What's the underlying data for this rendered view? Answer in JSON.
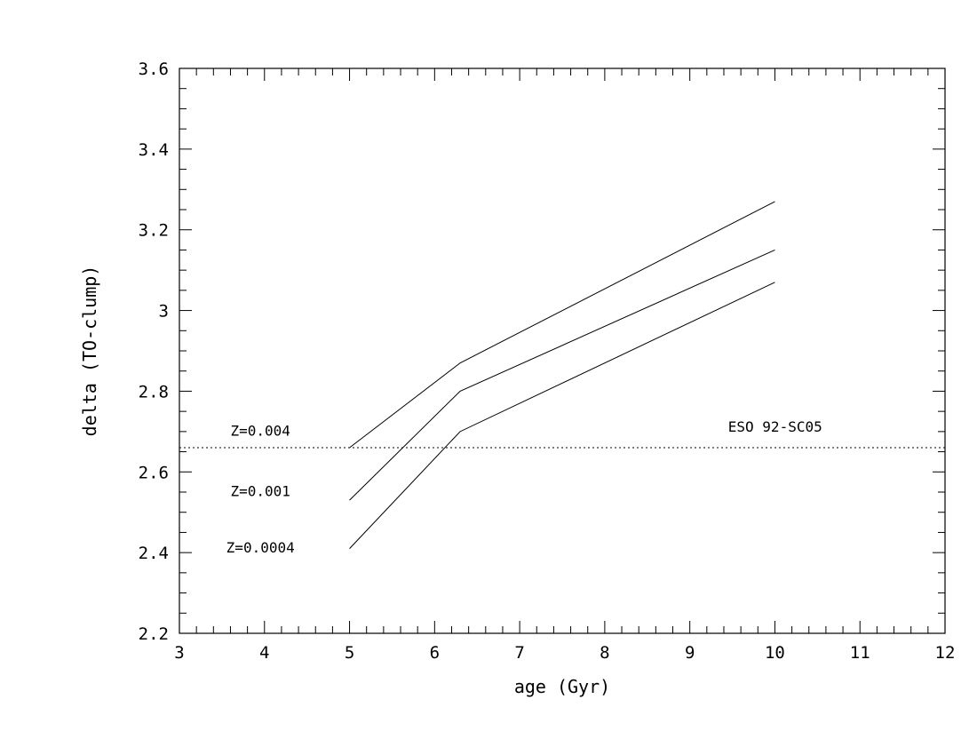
{
  "chart_data": {
    "type": "line",
    "xlabel": "age (Gyr)",
    "ylabel": "delta (TO-clump)",
    "xlim": [
      3,
      12
    ],
    "ylim": [
      2.2,
      3.6
    ],
    "x_ticks": [
      3,
      4,
      5,
      6,
      7,
      8,
      9,
      10,
      11,
      12
    ],
    "x_tick_labels": [
      "3",
      "4",
      "5",
      "6",
      "7",
      "8",
      "9",
      "10",
      "11",
      "12"
    ],
    "y_ticks": [
      2.2,
      2.4,
      2.6,
      2.8,
      3.0,
      3.2,
      3.4,
      3.6
    ],
    "y_tick_labels": [
      "2.2",
      "2.4",
      "2.6",
      "2.8",
      "3",
      "3.2",
      "3.4",
      "3.6"
    ],
    "x_minor_step": 0.2,
    "y_minor_step": 0.05,
    "grid": false,
    "series": [
      {
        "name": "Z=0.004",
        "x": [
          5,
          6.3,
          10
        ],
        "y": [
          2.66,
          2.87,
          3.27
        ]
      },
      {
        "name": "Z=0.001",
        "x": [
          5,
          6.3,
          10
        ],
        "y": [
          2.53,
          2.8,
          3.15
        ]
      },
      {
        "name": "Z=0.0004",
        "x": [
          5,
          6.3,
          10
        ],
        "y": [
          2.41,
          2.7,
          3.07
        ]
      }
    ],
    "series_labels": [
      {
        "text": "Z=0.004",
        "x": 3.6,
        "y": 2.69
      },
      {
        "text": "Z=0.001",
        "x": 3.6,
        "y": 2.54
      },
      {
        "text": "Z=0.0004",
        "x": 3.55,
        "y": 2.4
      }
    ],
    "reference_line": {
      "y": 2.66,
      "style": "dotted"
    },
    "annotations": [
      {
        "text": "ESO 92-SC05",
        "x": 9.45,
        "y": 2.7
      }
    ]
  }
}
